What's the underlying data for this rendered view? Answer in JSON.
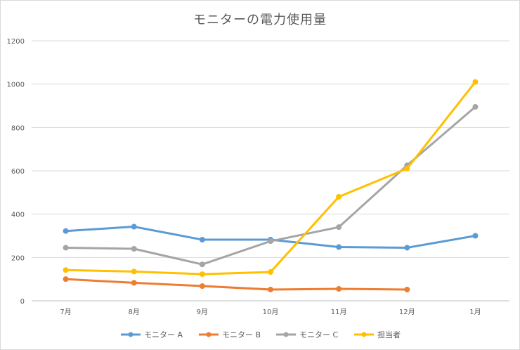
{
  "chart_data": {
    "type": "line",
    "title": "モニターの電力使用量",
    "xlabel": "",
    "ylabel": "",
    "categories": [
      "7月",
      "8月",
      "9月",
      "10月",
      "11月",
      "12月",
      "1月"
    ],
    "ylim": [
      0,
      1200
    ],
    "yticks": [
      0,
      200,
      400,
      600,
      800,
      1000,
      1200
    ],
    "grid": true,
    "legend_position": "bottom",
    "series": [
      {
        "name": "モニター A",
        "color": "#5b9bd5",
        "values": [
          322,
          342,
          282,
          282,
          248,
          245,
          300
        ]
      },
      {
        "name": "モニター B",
        "color": "#ed7d31",
        "values": [
          100,
          83,
          68,
          52,
          55,
          52,
          null
        ]
      },
      {
        "name": "モニター C",
        "color": "#a5a5a5",
        "values": [
          245,
          240,
          168,
          275,
          340,
          625,
          895
        ]
      },
      {
        "name": "担当者",
        "color": "#ffc000",
        "values": [
          142,
          135,
          123,
          133,
          480,
          610,
          1010
        ]
      }
    ]
  }
}
